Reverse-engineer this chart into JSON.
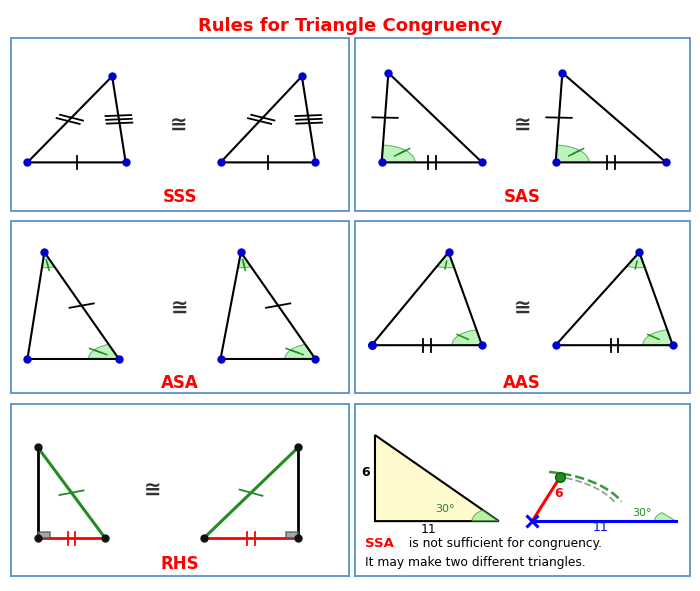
{
  "title": "Rules for Triangle Congruency",
  "title_color": "#FF0000",
  "title_fontsize": 13,
  "bg_color": "#FFFFFF",
  "border_color": "#6699CC",
  "labels": {
    "SSS": "SSS",
    "SAS": "SAS",
    "ASA": "ASA",
    "AAS": "AAS",
    "RHS": "RHS"
  },
  "label_color": "#FF0000",
  "congruence_symbol": "≅",
  "node_color": "#0000CC",
  "node_color_black": "#111111",
  "green_color": "#228B22",
  "red_color": "#FF0000",
  "blue_color": "#0000FF",
  "gray_color": "#888888",
  "light_green": "#90EE90",
  "light_yellow": "#FFFACD"
}
